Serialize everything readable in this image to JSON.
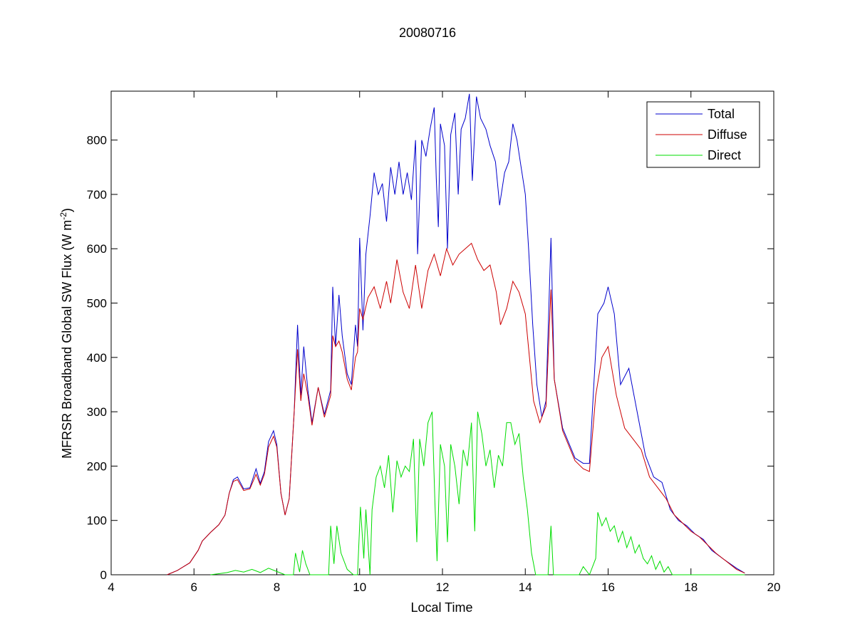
{
  "chart_data": {
    "type": "line",
    "title": "20080716",
    "xlabel": "Local Time",
    "ylabel": "MFRSR Broadband Global SW Flux (W m",
    "ylabel_sup": "-2",
    "ylabel_end": ")",
    "xlim": [
      4,
      20
    ],
    "ylim": [
      0,
      890
    ],
    "xticks": [
      4,
      6,
      8,
      10,
      12,
      14,
      16,
      18,
      20
    ],
    "yticks": [
      0,
      100,
      200,
      300,
      400,
      500,
      600,
      700,
      800
    ],
    "grid": false,
    "legend_position": "top-right",
    "series": [
      {
        "name": "Total",
        "color": "#0000cc",
        "points": [
          [
            5.35,
            0
          ],
          [
            5.6,
            8
          ],
          [
            5.9,
            22
          ],
          [
            6.1,
            45
          ],
          [
            6.2,
            62
          ],
          [
            6.4,
            78
          ],
          [
            6.6,
            92
          ],
          [
            6.75,
            110
          ],
          [
            6.85,
            150
          ],
          [
            6.95,
            175
          ],
          [
            7.05,
            180
          ],
          [
            7.2,
            158
          ],
          [
            7.35,
            160
          ],
          [
            7.5,
            195
          ],
          [
            7.6,
            168
          ],
          [
            7.7,
            190
          ],
          [
            7.8,
            245
          ],
          [
            7.92,
            265
          ],
          [
            8.0,
            240
          ],
          [
            8.1,
            150
          ],
          [
            8.2,
            110
          ],
          [
            8.3,
            140
          ],
          [
            8.42,
            300
          ],
          [
            8.5,
            460
          ],
          [
            8.58,
            330
          ],
          [
            8.65,
            420
          ],
          [
            8.75,
            340
          ],
          [
            8.85,
            280
          ],
          [
            9.0,
            345
          ],
          [
            9.15,
            295
          ],
          [
            9.3,
            340
          ],
          [
            9.35,
            530
          ],
          [
            9.42,
            420
          ],
          [
            9.5,
            515
          ],
          [
            9.58,
            440
          ],
          [
            9.7,
            370
          ],
          [
            9.8,
            350
          ],
          [
            9.9,
            460
          ],
          [
            9.95,
            420
          ],
          [
            10.0,
            620
          ],
          [
            10.08,
            450
          ],
          [
            10.15,
            590
          ],
          [
            10.25,
            660
          ],
          [
            10.35,
            740
          ],
          [
            10.45,
            700
          ],
          [
            10.55,
            720
          ],
          [
            10.65,
            650
          ],
          [
            10.75,
            750
          ],
          [
            10.85,
            700
          ],
          [
            10.95,
            760
          ],
          [
            11.05,
            700
          ],
          [
            11.15,
            740
          ],
          [
            11.25,
            690
          ],
          [
            11.35,
            800
          ],
          [
            11.4,
            590
          ],
          [
            11.5,
            800
          ],
          [
            11.6,
            770
          ],
          [
            11.7,
            820
          ],
          [
            11.8,
            860
          ],
          [
            11.85,
            730
          ],
          [
            11.9,
            640
          ],
          [
            11.95,
            830
          ],
          [
            12.05,
            790
          ],
          [
            12.12,
            600
          ],
          [
            12.2,
            810
          ],
          [
            12.3,
            850
          ],
          [
            12.38,
            700
          ],
          [
            12.45,
            820
          ],
          [
            12.55,
            840
          ],
          [
            12.65,
            885
          ],
          [
            12.72,
            725
          ],
          [
            12.82,
            880
          ],
          [
            12.92,
            840
          ],
          [
            13.05,
            820
          ],
          [
            13.15,
            790
          ],
          [
            13.28,
            760
          ],
          [
            13.38,
            680
          ],
          [
            13.5,
            740
          ],
          [
            13.6,
            760
          ],
          [
            13.7,
            830
          ],
          [
            13.8,
            800
          ],
          [
            13.9,
            750
          ],
          [
            14.0,
            700
          ],
          [
            14.08,
            600
          ],
          [
            14.18,
            460
          ],
          [
            14.28,
            350
          ],
          [
            14.4,
            290
          ],
          [
            14.5,
            320
          ],
          [
            14.62,
            620
          ],
          [
            14.7,
            360
          ],
          [
            14.9,
            270
          ],
          [
            15.2,
            215
          ],
          [
            15.4,
            205
          ],
          [
            15.55,
            205
          ],
          [
            15.75,
            480
          ],
          [
            15.9,
            500
          ],
          [
            16.0,
            530
          ],
          [
            16.15,
            480
          ],
          [
            16.3,
            350
          ],
          [
            16.5,
            380
          ],
          [
            16.7,
            300
          ],
          [
            16.9,
            220
          ],
          [
            17.1,
            180
          ],
          [
            17.3,
            170
          ],
          [
            17.5,
            120
          ],
          [
            17.7,
            100
          ],
          [
            17.9,
            90
          ],
          [
            18.1,
            75
          ],
          [
            18.3,
            65
          ],
          [
            18.5,
            45
          ],
          [
            18.8,
            28
          ],
          [
            19.1,
            12
          ],
          [
            19.3,
            3
          ]
        ]
      },
      {
        "name": "Diffuse",
        "color": "#cc0000",
        "points": [
          [
            5.35,
            0
          ],
          [
            5.6,
            8
          ],
          [
            5.9,
            22
          ],
          [
            6.1,
            45
          ],
          [
            6.2,
            62
          ],
          [
            6.4,
            78
          ],
          [
            6.6,
            92
          ],
          [
            6.75,
            110
          ],
          [
            6.85,
            150
          ],
          [
            6.95,
            172
          ],
          [
            7.05,
            175
          ],
          [
            7.2,
            155
          ],
          [
            7.35,
            158
          ],
          [
            7.5,
            185
          ],
          [
            7.6,
            165
          ],
          [
            7.7,
            185
          ],
          [
            7.8,
            235
          ],
          [
            7.92,
            255
          ],
          [
            8.0,
            235
          ],
          [
            8.1,
            150
          ],
          [
            8.2,
            110
          ],
          [
            8.3,
            140
          ],
          [
            8.42,
            300
          ],
          [
            8.5,
            415
          ],
          [
            8.58,
            320
          ],
          [
            8.65,
            370
          ],
          [
            8.75,
            330
          ],
          [
            8.85,
            275
          ],
          [
            9.0,
            345
          ],
          [
            9.15,
            290
          ],
          [
            9.3,
            330
          ],
          [
            9.35,
            440
          ],
          [
            9.42,
            420
          ],
          [
            9.5,
            430
          ],
          [
            9.58,
            410
          ],
          [
            9.7,
            360
          ],
          [
            9.8,
            340
          ],
          [
            9.9,
            400
          ],
          [
            9.95,
            410
          ],
          [
            10.0,
            490
          ],
          [
            10.08,
            470
          ],
          [
            10.2,
            510
          ],
          [
            10.35,
            530
          ],
          [
            10.5,
            490
          ],
          [
            10.65,
            540
          ],
          [
            10.75,
            500
          ],
          [
            10.9,
            580
          ],
          [
            11.05,
            520
          ],
          [
            11.2,
            490
          ],
          [
            11.35,
            570
          ],
          [
            11.5,
            490
          ],
          [
            11.65,
            560
          ],
          [
            11.8,
            590
          ],
          [
            11.95,
            550
          ],
          [
            12.1,
            600
          ],
          [
            12.25,
            570
          ],
          [
            12.4,
            590
          ],
          [
            12.55,
            600
          ],
          [
            12.7,
            610
          ],
          [
            12.85,
            580
          ],
          [
            13.0,
            560
          ],
          [
            13.15,
            570
          ],
          [
            13.3,
            520
          ],
          [
            13.4,
            460
          ],
          [
            13.55,
            490
          ],
          [
            13.7,
            540
          ],
          [
            13.85,
            520
          ],
          [
            14.0,
            480
          ],
          [
            14.1,
            400
          ],
          [
            14.2,
            320
          ],
          [
            14.35,
            280
          ],
          [
            14.5,
            310
          ],
          [
            14.62,
            525
          ],
          [
            14.7,
            360
          ],
          [
            14.9,
            265
          ],
          [
            15.2,
            210
          ],
          [
            15.4,
            195
          ],
          [
            15.55,
            190
          ],
          [
            15.7,
            330
          ],
          [
            15.85,
            400
          ],
          [
            16.0,
            420
          ],
          [
            16.2,
            330
          ],
          [
            16.4,
            270
          ],
          [
            16.6,
            250
          ],
          [
            16.8,
            230
          ],
          [
            17.0,
            180
          ],
          [
            17.2,
            160
          ],
          [
            17.4,
            140
          ],
          [
            17.6,
            110
          ],
          [
            17.8,
            95
          ],
          [
            18.0,
            80
          ],
          [
            18.2,
            70
          ],
          [
            18.4,
            55
          ],
          [
            18.6,
            40
          ],
          [
            18.9,
            22
          ],
          [
            19.1,
            10
          ],
          [
            19.3,
            3
          ]
        ]
      },
      {
        "name": "Direct",
        "color": "#00dd00",
        "points": [
          [
            6.4,
            0
          ],
          [
            6.6,
            2
          ],
          [
            6.8,
            4
          ],
          [
            7.0,
            8
          ],
          [
            7.2,
            5
          ],
          [
            7.4,
            10
          ],
          [
            7.6,
            4
          ],
          [
            7.8,
            12
          ],
          [
            8.0,
            6
          ],
          [
            8.2,
            0
          ],
          [
            8.4,
            0
          ],
          [
            8.45,
            40
          ],
          [
            8.55,
            5
          ],
          [
            8.62,
            45
          ],
          [
            8.7,
            20
          ],
          [
            8.8,
            0
          ],
          [
            9.25,
            0
          ],
          [
            9.3,
            90
          ],
          [
            9.38,
            20
          ],
          [
            9.45,
            90
          ],
          [
            9.55,
            40
          ],
          [
            9.7,
            10
          ],
          [
            9.85,
            0
          ],
          [
            9.95,
            0
          ],
          [
            10.02,
            125
          ],
          [
            10.1,
            30
          ],
          [
            10.15,
            120
          ],
          [
            10.25,
            0
          ],
          [
            10.3,
            120
          ],
          [
            10.4,
            180
          ],
          [
            10.5,
            200
          ],
          [
            10.6,
            160
          ],
          [
            10.7,
            220
          ],
          [
            10.8,
            115
          ],
          [
            10.9,
            210
          ],
          [
            11.0,
            180
          ],
          [
            11.1,
            200
          ],
          [
            11.2,
            190
          ],
          [
            11.3,
            250
          ],
          [
            11.38,
            60
          ],
          [
            11.45,
            250
          ],
          [
            11.55,
            200
          ],
          [
            11.65,
            280
          ],
          [
            11.75,
            300
          ],
          [
            11.82,
            130
          ],
          [
            11.87,
            25
          ],
          [
            11.95,
            240
          ],
          [
            12.05,
            200
          ],
          [
            12.12,
            60
          ],
          [
            12.2,
            240
          ],
          [
            12.3,
            200
          ],
          [
            12.4,
            130
          ],
          [
            12.5,
            230
          ],
          [
            12.6,
            200
          ],
          [
            12.7,
            280
          ],
          [
            12.78,
            80
          ],
          [
            12.85,
            300
          ],
          [
            12.95,
            260
          ],
          [
            13.05,
            200
          ],
          [
            13.15,
            230
          ],
          [
            13.25,
            160
          ],
          [
            13.35,
            220
          ],
          [
            13.45,
            200
          ],
          [
            13.55,
            280
          ],
          [
            13.65,
            280
          ],
          [
            13.75,
            240
          ],
          [
            13.85,
            260
          ],
          [
            13.95,
            180
          ],
          [
            14.05,
            120
          ],
          [
            14.15,
            40
          ],
          [
            14.25,
            0
          ],
          [
            14.55,
            0
          ],
          [
            14.62,
            90
          ],
          [
            14.68,
            0
          ],
          [
            15.3,
            0
          ],
          [
            15.4,
            15
          ],
          [
            15.55,
            0
          ],
          [
            15.7,
            30
          ],
          [
            15.75,
            115
          ],
          [
            15.85,
            90
          ],
          [
            15.95,
            105
          ],
          [
            16.05,
            80
          ],
          [
            16.15,
            90
          ],
          [
            16.25,
            60
          ],
          [
            16.35,
            80
          ],
          [
            16.45,
            50
          ],
          [
            16.55,
            70
          ],
          [
            16.65,
            40
          ],
          [
            16.75,
            55
          ],
          [
            16.85,
            30
          ],
          [
            16.95,
            20
          ],
          [
            17.05,
            35
          ],
          [
            17.15,
            10
          ],
          [
            17.25,
            25
          ],
          [
            17.35,
            5
          ],
          [
            17.45,
            15
          ],
          [
            17.55,
            0
          ],
          [
            19.3,
            0
          ]
        ]
      }
    ]
  }
}
